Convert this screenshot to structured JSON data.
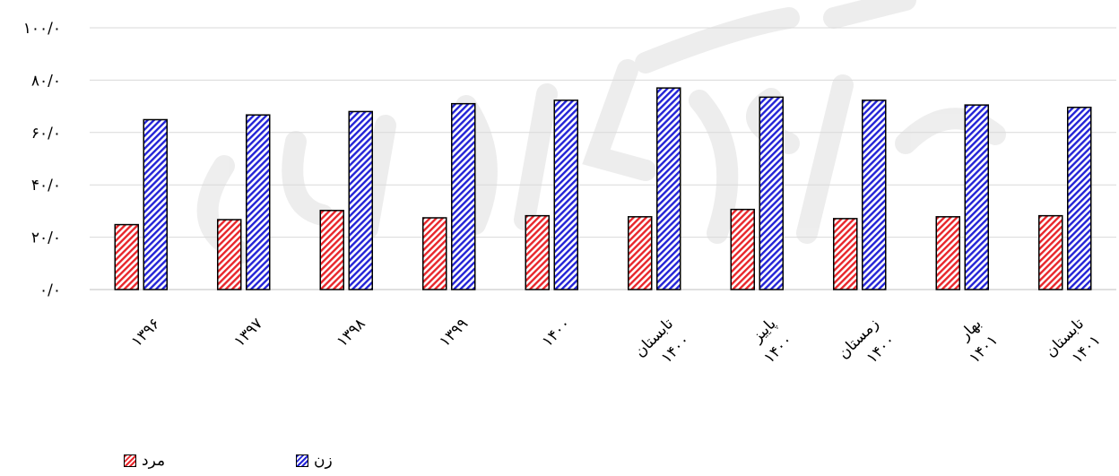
{
  "chart_data": {
    "type": "bar",
    "categories": [
      "۱۳۹۶",
      "۱۳۹۷",
      "۱۳۹۸",
      "۱۳۹۹",
      "۱۴۰۰",
      "تابستان ۱۴۰۰",
      "پاییز ۱۴۰۰",
      "زمستان ۱۴۰۰",
      "بهار ۱۴۰۱",
      "تابستان ۱۴۰۱"
    ],
    "series": [
      {
        "name": "مرد",
        "color": "#e8262b",
        "values": [
          24.8,
          26.7,
          30.2,
          27.4,
          28.2,
          27.8,
          30.6,
          27.1,
          27.8,
          28.2
        ]
      },
      {
        "name": "زن",
        "color": "#2323d6",
        "values": [
          64.9,
          66.7,
          68.0,
          71.0,
          72.3,
          77.0,
          73.5,
          72.3,
          70.5,
          69.6
        ]
      }
    ],
    "yticks": [
      "۰/۰",
      "۲۰/۰",
      "۴۰/۰",
      "۶۰/۰",
      "۸۰/۰",
      "۱۰۰/۰"
    ],
    "ylim": [
      0,
      100
    ],
    "grid": true,
    "legend_position": "bottom-left"
  }
}
